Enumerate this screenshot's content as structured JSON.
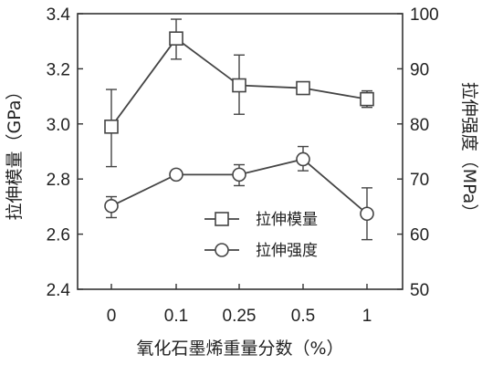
{
  "chart_data": {
    "type": "line",
    "categories": [
      "0",
      "0.1",
      "0.25",
      "0.5",
      "1"
    ],
    "xlabel": "氧化石墨烯重量分数（%）",
    "ylabel_left": "拉伸模量（GPa）",
    "ylabel_right": "拉伸强度（MPa）",
    "ylim_left": [
      2.4,
      3.4
    ],
    "yticks_left": [
      "2.4",
      "2.6",
      "2.8",
      "3.0",
      "3.2",
      "3.4"
    ],
    "ylim_right": [
      50,
      100
    ],
    "yticks_right": [
      "50",
      "60",
      "70",
      "80",
      "90",
      "100"
    ],
    "grid": false,
    "legend_position": "lower-center",
    "series": [
      {
        "name": "拉伸模量",
        "axis": "left",
        "marker": "square",
        "values": [
          2.99,
          3.31,
          3.14,
          3.13,
          3.09
        ],
        "err_low": [
          2.845,
          3.235,
          3.035,
          3.115,
          3.06
        ],
        "err_high": [
          3.125,
          3.38,
          3.25,
          3.145,
          3.12
        ]
      },
      {
        "name": "拉伸强度",
        "axis": "right",
        "marker": "circle",
        "values": [
          65.1,
          70.8,
          70.8,
          73.6,
          63.7
        ],
        "err_low": [
          63.0,
          70.2,
          68.8,
          71.5,
          59.0
        ],
        "err_high": [
          66.8,
          71.4,
          72.6,
          75.9,
          68.4
        ]
      }
    ],
    "colors": {
      "line": "#444444",
      "marker_face": "#ffffff",
      "frame": "#333333"
    }
  }
}
